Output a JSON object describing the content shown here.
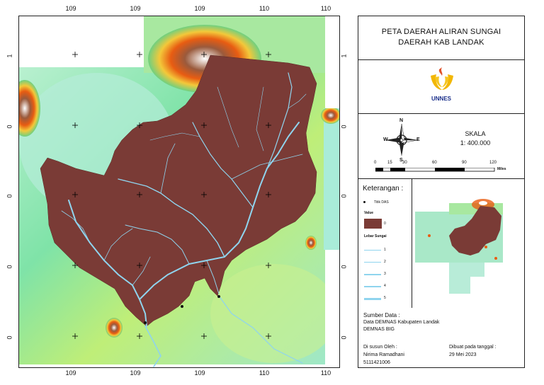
{
  "title": {
    "line1": "PETA DAERAH ALIRAN SUNGAI",
    "line2": "DAERAH KAB LANDAK"
  },
  "logo_text": "UNNES",
  "north_arrow": {
    "n": "N",
    "s": "S",
    "e": "E",
    "w": "W"
  },
  "scale": {
    "label": "SKALA",
    "value": "1: 400.000",
    "ticks": [
      "0",
      "15",
      "30",
      "60",
      "90",
      "120"
    ],
    "unit": "Miles"
  },
  "legend": {
    "heading": "Keterangan :",
    "point_label": "Titik DAS",
    "value_heading": "Value",
    "value_item": "0",
    "river_heading": "Lebar Sungai",
    "river_classes": [
      "1",
      "2",
      "3",
      "4",
      "5"
    ]
  },
  "source": {
    "heading": "Sumber Data :",
    "line1": "Data DEMNAS Kabupaten Landak",
    "line2": "DEMNAS BIG"
  },
  "author": {
    "heading": "Di susun Oleh :",
    "name": "Nirima Ramadhani",
    "id": "5111421006"
  },
  "date": {
    "heading": "Dibuat pada tanggal :",
    "value": "29 Mei 2023"
  },
  "axis_labels": {
    "top": [
      "109",
      "109",
      "109",
      "110",
      "110"
    ],
    "bottom": [
      "109",
      "109",
      "109",
      "110",
      "110"
    ],
    "side": [
      "1",
      "0",
      "0",
      "0",
      "0"
    ]
  },
  "colors": {
    "watershed": "#7a3b36",
    "river": "#8fd4ee",
    "frame": "#222222"
  }
}
